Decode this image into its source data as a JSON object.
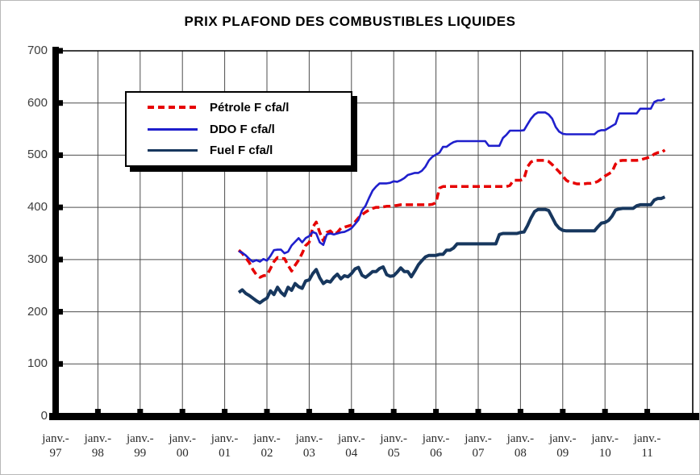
{
  "chart_data": {
    "type": "line",
    "title": "PRIX PLAFOND DES COMBUSTIBLES LIQUIDES",
    "ylim": [
      0,
      700
    ],
    "y_ticks": [
      0,
      100,
      200,
      300,
      400,
      500,
      600,
      700
    ],
    "x_tick_labels": [
      "janv.-97",
      "janv.-98",
      "janv.-99",
      "janv.-00",
      "janv.-01",
      "janv.-02",
      "janv.-03",
      "janv.-04",
      "janv.-05",
      "janv.-06",
      "janv.-07",
      "janv.-08",
      "janv.-09",
      "janv.-10",
      "janv.-11"
    ],
    "x_frequency": "monthly",
    "first_point_months_after_jan97": 52,
    "grid": true,
    "legend_position": "top-left",
    "axis_color": "#000000",
    "gridline_color": "#4d4d4d",
    "series": [
      {
        "name": "Pétrole F cfa/l",
        "color": "#E60000",
        "dashed": true,
        "values": [
          318,
          312,
          303,
          294,
          281,
          271,
          266,
          269,
          270,
          283,
          296,
          304,
          302,
          302,
          289,
          278,
          289,
          299,
          312,
          327,
          333,
          362,
          372,
          352,
          336,
          352,
          355,
          348,
          352,
          360,
          362,
          364,
          366,
          372,
          380,
          386,
          391,
          395,
          398,
          400,
          400,
          401,
          402,
          402,
          403,
          404,
          405,
          405,
          405,
          405,
          405,
          405,
          405,
          405,
          405,
          406,
          409,
          437,
          440,
          440,
          440,
          440,
          440,
          440,
          440,
          440,
          440,
          440,
          440,
          440,
          440,
          440,
          440,
          440,
          440,
          440,
          440,
          442,
          452,
          452,
          452,
          455,
          478,
          487,
          490,
          490,
          490,
          490,
          488,
          482,
          475,
          468,
          460,
          452,
          448,
          447,
          445,
          445,
          445,
          446,
          446,
          447,
          450,
          455,
          460,
          464,
          468,
          483,
          489,
          490,
          490,
          490,
          490,
          490,
          491,
          493,
          495,
          497,
          502,
          505,
          505,
          510
        ]
      },
      {
        "name": "DDO F cfa/l",
        "color": "#1F1FCC",
        "dashed": false,
        "values": [
          316,
          313,
          308,
          301,
          296,
          299,
          296,
          301,
          298,
          307,
          318,
          319,
          319,
          312,
          315,
          327,
          334,
          341,
          333,
          341,
          345,
          353,
          350,
          333,
          328,
          348,
          350,
          348,
          350,
          352,
          353,
          356,
          360,
          368,
          376,
          394,
          403,
          418,
          432,
          440,
          446,
          446,
          446,
          447,
          450,
          449,
          452,
          456,
          462,
          464,
          466,
          466,
          470,
          478,
          490,
          497,
          501,
          505,
          516,
          516,
          521,
          525,
          527,
          527,
          527,
          527,
          527,
          527,
          527,
          527,
          527,
          518,
          518,
          518,
          518,
          533,
          539,
          547,
          547,
          547,
          547,
          548,
          559,
          570,
          578,
          582,
          582,
          582,
          578,
          570,
          554,
          545,
          541,
          540,
          540,
          540,
          540,
          540,
          540,
          540,
          540,
          540,
          546,
          548,
          548,
          552,
          556,
          560,
          580,
          580,
          580,
          580,
          580,
          580,
          589,
          589,
          589,
          589,
          602,
          605,
          605,
          608
        ]
      },
      {
        "name": "Fuel F cfa/l",
        "color": "#17375E",
        "dashed": false,
        "values": [
          237,
          242,
          235,
          231,
          226,
          221,
          217,
          222,
          226,
          240,
          233,
          247,
          237,
          231,
          247,
          241,
          254,
          248,
          245,
          259,
          261,
          273,
          281,
          265,
          254,
          259,
          257,
          266,
          272,
          263,
          269,
          267,
          273,
          282,
          285,
          270,
          266,
          271,
          277,
          277,
          283,
          286,
          271,
          268,
          269,
          276,
          284,
          277,
          277,
          267,
          278,
          290,
          298,
          305,
          308,
          308,
          308,
          310,
          310,
          318,
          318,
          322,
          330,
          330,
          330,
          330,
          330,
          330,
          330,
          330,
          330,
          330,
          330,
          330,
          348,
          350,
          350,
          350,
          350,
          350,
          352,
          353,
          365,
          380,
          392,
          396,
          396,
          396,
          394,
          381,
          368,
          360,
          356,
          355,
          355,
          355,
          355,
          355,
          355,
          355,
          355,
          355,
          363,
          370,
          371,
          375,
          383,
          395,
          397,
          398,
          398,
          398,
          398,
          403,
          405,
          405,
          405,
          405,
          414,
          417,
          417,
          420
        ]
      }
    ]
  }
}
